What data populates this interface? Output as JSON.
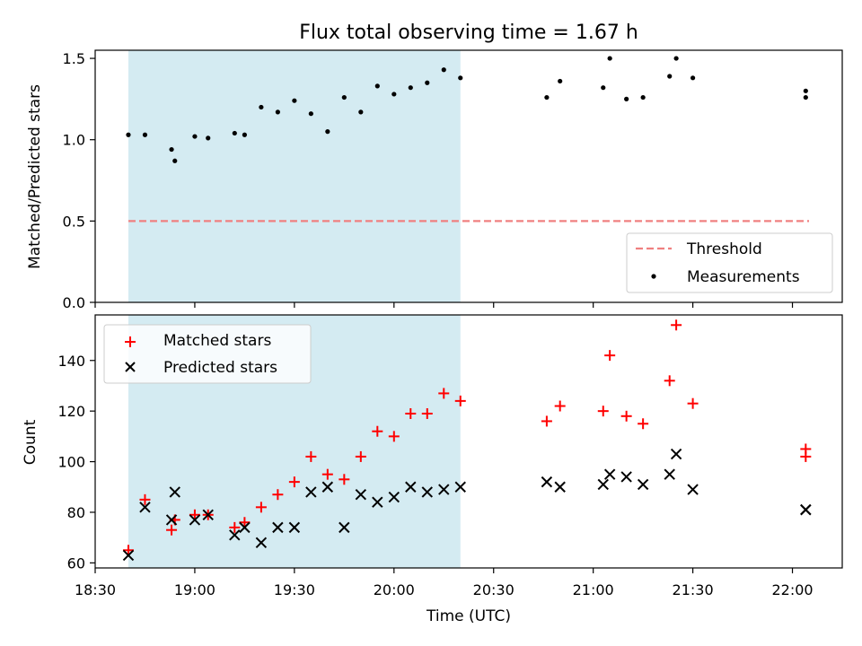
{
  "chart_data": [
    {
      "type": "scatter",
      "title": "Flux total observing time = 1.67 h",
      "ylabel": "Matched/Predicted stars",
      "xlim": [
        "18:30",
        "22:15"
      ],
      "ylim": [
        0.0,
        1.55
      ],
      "yticks": [
        "0.0",
        "0.5",
        "1.0",
        "1.5"
      ],
      "shaded_span": {
        "x": [
          "18:40",
          "20:20"
        ],
        "color": "#add8e6"
      },
      "threshold": {
        "name": "Threshold",
        "y": 0.5,
        "x": [
          "18:40",
          "22:05"
        ],
        "color": "#f08080",
        "style": "dashed"
      },
      "legend": {
        "position": "lower-right"
      },
      "series": [
        {
          "name": "Measurements",
          "color": "#000000",
          "marker": "dot",
          "x": [
            "18:40",
            "18:45",
            "18:53",
            "18:54",
            "19:00",
            "19:04",
            "19:12",
            "19:15",
            "19:20",
            "19:25",
            "19:30",
            "19:35",
            "19:40",
            "19:45",
            "19:50",
            "19:55",
            "20:00",
            "20:05",
            "20:10",
            "20:15",
            "20:20",
            "20:46",
            "20:50",
            "21:03",
            "21:05",
            "21:10",
            "21:15",
            "21:23",
            "21:25",
            "21:30",
            "22:04",
            "22:04"
          ],
          "y": [
            1.03,
            1.03,
            0.94,
            0.87,
            1.02,
            1.01,
            1.04,
            1.03,
            1.2,
            1.17,
            1.24,
            1.16,
            1.05,
            1.26,
            1.17,
            1.33,
            1.28,
            1.32,
            1.35,
            1.43,
            1.38,
            1.26,
            1.36,
            1.32,
            1.5,
            1.25,
            1.26,
            1.39,
            1.5,
            1.38,
            1.26,
            1.3
          ]
        }
      ]
    },
    {
      "type": "scatter",
      "xlabel": "Time (UTC)",
      "ylabel": "Count",
      "xlim": [
        "18:30",
        "22:15"
      ],
      "ylim": [
        58,
        158
      ],
      "yticks": [
        "60",
        "80",
        "100",
        "120",
        "140"
      ],
      "xticks": [
        "18:30",
        "19:00",
        "19:30",
        "20:00",
        "20:30",
        "21:00",
        "21:30",
        "22:00"
      ],
      "shaded_span": {
        "x": [
          "18:40",
          "20:20"
        ],
        "color": "#add8e6"
      },
      "legend": {
        "position": "top-left"
      },
      "series": [
        {
          "name": "Matched stars",
          "color": "#ff0000",
          "marker": "plus",
          "x": [
            "18:40",
            "18:45",
            "18:53",
            "18:54",
            "19:00",
            "19:04",
            "19:12",
            "19:15",
            "19:20",
            "19:25",
            "19:30",
            "19:35",
            "19:40",
            "19:45",
            "19:50",
            "19:55",
            "20:00",
            "20:05",
            "20:10",
            "20:15",
            "20:20",
            "20:46",
            "20:50",
            "21:03",
            "21:05",
            "21:10",
            "21:15",
            "21:23",
            "21:25",
            "21:30",
            "22:04",
            "22:04"
          ],
          "y": [
            65,
            85,
            73,
            77,
            79,
            79,
            74,
            76,
            82,
            87,
            92,
            102,
            95,
            93,
            102,
            112,
            110,
            119,
            119,
            127,
            124,
            116,
            122,
            120,
            142,
            118,
            115,
            132,
            154,
            123,
            102,
            105
          ]
        },
        {
          "name": "Predicted stars",
          "color": "#000000",
          "marker": "x",
          "x": [
            "18:40",
            "18:45",
            "18:53",
            "18:54",
            "19:00",
            "19:04",
            "19:12",
            "19:15",
            "19:20",
            "19:25",
            "19:30",
            "19:35",
            "19:40",
            "19:45",
            "19:50",
            "19:55",
            "20:00",
            "20:05",
            "20:10",
            "20:15",
            "20:20",
            "20:46",
            "20:50",
            "21:03",
            "21:05",
            "21:10",
            "21:15",
            "21:23",
            "21:25",
            "21:30",
            "22:04",
            "22:04"
          ],
          "y": [
            63,
            82,
            77,
            88,
            77,
            79,
            71,
            74,
            68,
            74,
            74,
            88,
            90,
            74,
            87,
            84,
            86,
            90,
            88,
            89,
            90,
            92,
            90,
            91,
            95,
            94,
            91,
            95,
            103,
            89,
            81,
            81
          ]
        }
      ]
    }
  ]
}
